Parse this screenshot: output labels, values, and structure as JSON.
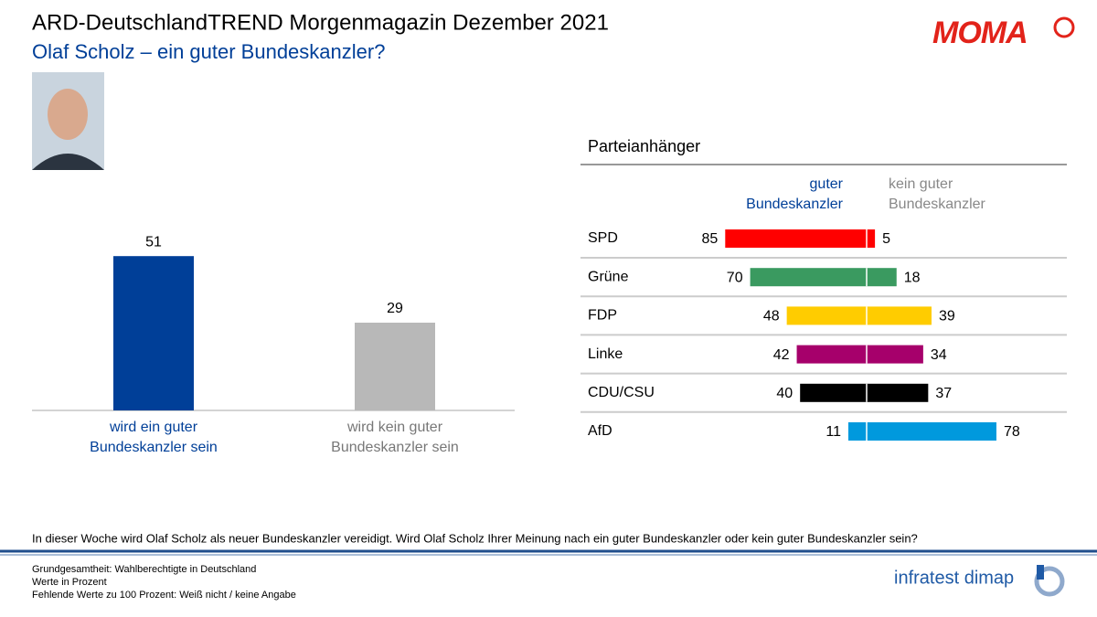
{
  "header": {
    "title": "ARD-DeutschlandTREND Morgenmagazin Dezember 2021",
    "subtitle": "Olaf Scholz – ein guter Bundeskanzler?",
    "logo": "MOMA"
  },
  "chart_data": [
    {
      "type": "bar",
      "categories": [
        "wird ein guter Bundeskanzler sein",
        "wird kein guter Bundeskanzler sein"
      ],
      "values": [
        51,
        29
      ],
      "colors": [
        "#003f98",
        "#b8b8b8"
      ],
      "label_colors": [
        "#003f98",
        "#777777"
      ]
    },
    {
      "type": "diverging-bar",
      "title": "Parteianhänger",
      "categories": [
        "SPD",
        "Grüne",
        "FDP",
        "Linke",
        "CDU/CSU",
        "AfD"
      ],
      "colors": [
        "#ff0000",
        "#3a9a60",
        "#ffcc00",
        "#a6006b",
        "#000000",
        "#0099dd"
      ],
      "series": [
        {
          "name": "guter Bundeskanzler",
          "color": "#003f98",
          "values": [
            85,
            70,
            48,
            42,
            40,
            11
          ]
        },
        {
          "name": "kein guter Bundeskanzler",
          "color": "#888888",
          "values": [
            5,
            18,
            39,
            34,
            37,
            78
          ]
        }
      ]
    }
  ],
  "footer": {
    "question": "In dieser Woche wird Olaf Scholz als neuer Bundeskanzler vereidigt. Wird Olaf Scholz Ihrer Meinung nach ein guter Bundeskanzler oder kein guter Bundeskanzler sein?",
    "notes": [
      "Grundgesamtheit: Wahlberechtigte in Deutschland",
      "Werte in Prozent",
      "Fehlende Werte zu 100 Prozent: Weiß nicht / keine Angabe"
    ],
    "source": "infratest dimap"
  }
}
